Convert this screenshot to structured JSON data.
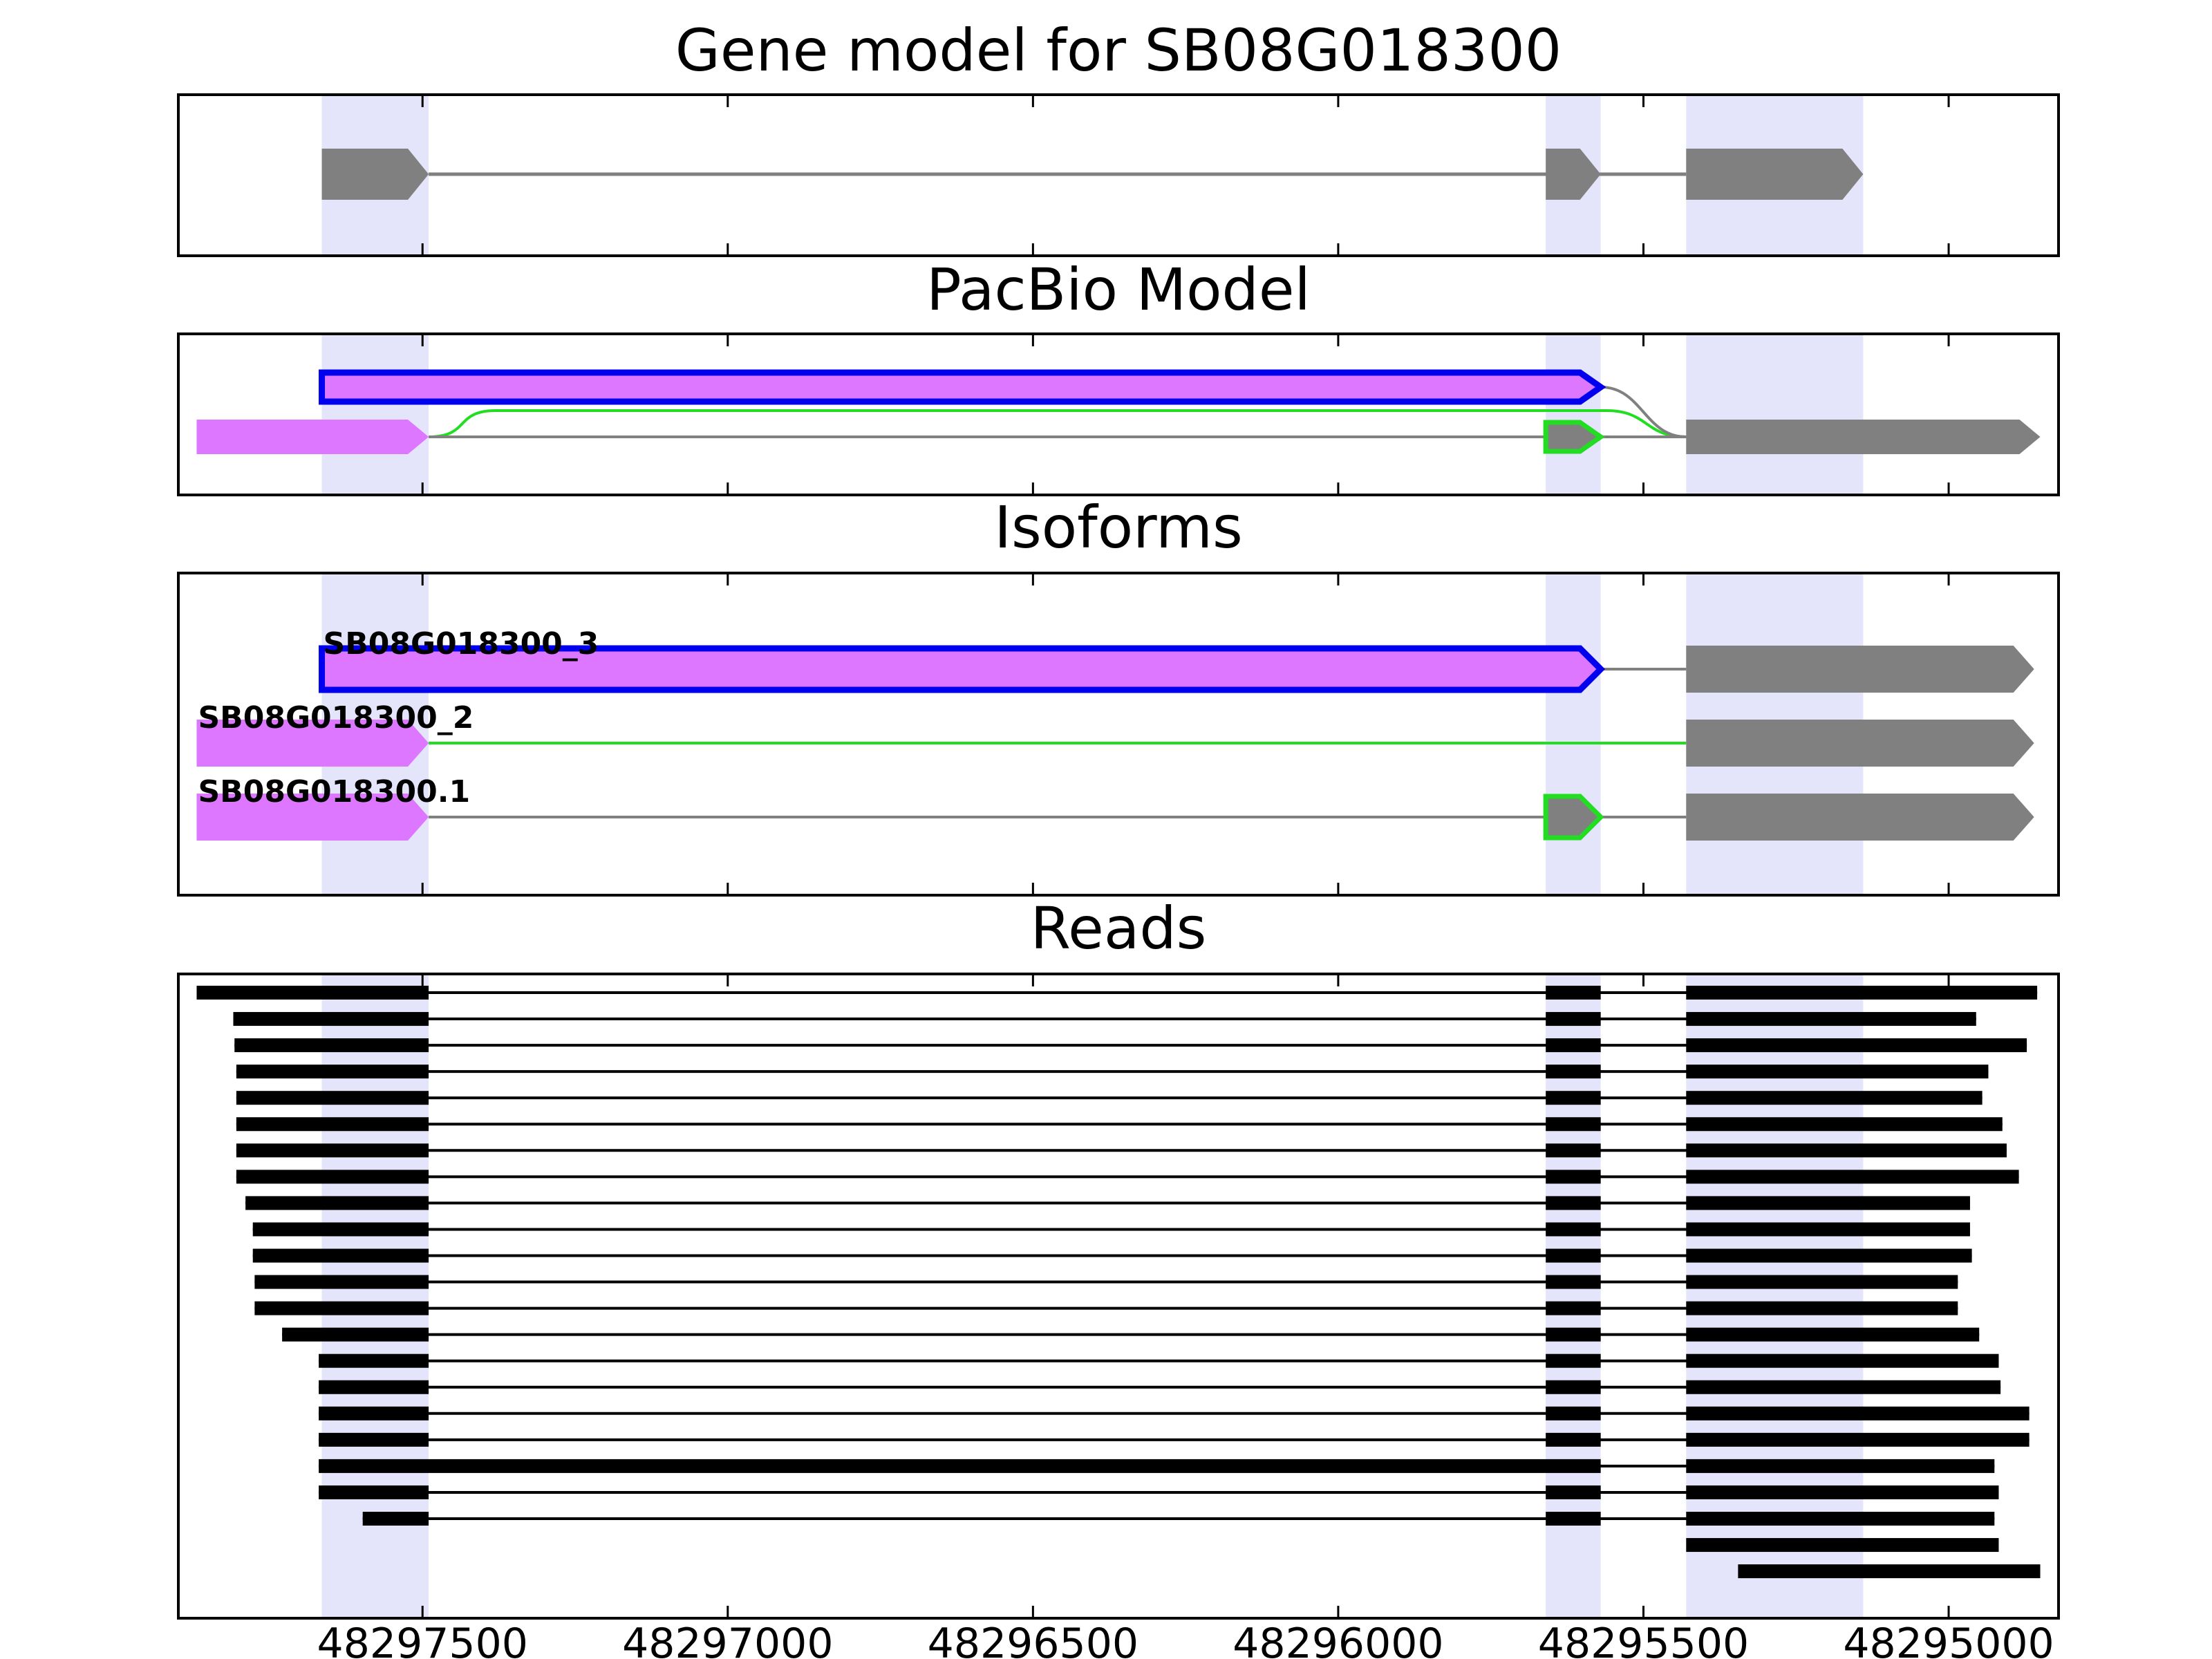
{
  "chart_data": [
    {
      "panel": "gene_model",
      "type": "gene-track",
      "title": "Gene model for SB08G018300",
      "xlim": [
        48297900,
        48294820
      ],
      "strand": "minus",
      "transcripts": [
        {
          "name": "",
          "color": "#808080",
          "exons": [
            [
              48297665,
              48297490
            ],
            [
              48295660,
              48295570
            ],
            [
              48295430,
              48295140
            ]
          ]
        }
      ]
    },
    {
      "panel": "pacbio_model",
      "type": "gene-track",
      "title": "PacBio Model",
      "xlim": [
        48297900,
        48294820
      ],
      "exons_shown": [
        {
          "start": 48297870,
          "end": 48297490,
          "fill": "#dd77ff",
          "edge": ""
        },
        {
          "start": 48297665,
          "end": 48295570,
          "fill": "#dd77ff",
          "edge": "#0000ee"
        },
        {
          "start": 48295660,
          "end": 48295570,
          "fill": "#808080",
          "edge": "#22dd22"
        },
        {
          "start": 48295430,
          "end": 48294850,
          "fill": "#808080",
          "edge": ""
        }
      ],
      "junctions": [
        {
          "from": 48297490,
          "to": 48295430,
          "color": "#22dd22"
        },
        {
          "from": 48297490,
          "to": 48295660,
          "color": "#808080"
        },
        {
          "from": 48295570,
          "to": 48295430,
          "color": "#808080"
        }
      ]
    },
    {
      "panel": "isoforms",
      "type": "gene-track",
      "title": "Isoforms",
      "xlim": [
        48297900,
        48294820
      ],
      "isoforms": [
        {
          "name": "SB08G018300_3",
          "line_color": "#808080",
          "exons": [
            {
              "start": 48297665,
              "end": 48295570,
              "fill": "#dd77ff",
              "edge": "#0000ee"
            },
            {
              "start": 48295430,
              "end": 48294860,
              "fill": "#808080",
              "edge": ""
            }
          ]
        },
        {
          "name": "SB08G018300_2",
          "line_color": "#22dd22",
          "exons": [
            {
              "start": 48297870,
              "end": 48297490,
              "fill": "#dd77ff",
              "edge": ""
            },
            {
              "start": 48295430,
              "end": 48294860,
              "fill": "#808080",
              "edge": ""
            }
          ]
        },
        {
          "name": "SB08G018300.1",
          "line_color": "#808080",
          "exons": [
            {
              "start": 48297870,
              "end": 48297490,
              "fill": "#dd77ff",
              "edge": ""
            },
            {
              "start": 48295660,
              "end": 48295570,
              "fill": "#808080",
              "edge": "#22dd22"
            },
            {
              "start": 48295430,
              "end": 48294860,
              "fill": "#808080",
              "edge": ""
            }
          ]
        }
      ]
    },
    {
      "panel": "reads",
      "type": "read-track",
      "title": "Reads",
      "xlim": [
        48297900,
        48294820
      ],
      "xticks": [
        48297500,
        48297000,
        48296500,
        48296000,
        48295500,
        48295000
      ],
      "xtick_labels": [
        "48297500",
        "48297000",
        "48296500",
        "48296000",
        "48295500",
        "48295000"
      ],
      "reads": [
        [
          [
            48297870,
            48297490
          ],
          [
            48295660,
            48295570
          ],
          [
            48295430,
            48294855
          ]
        ],
        [
          [
            48297810,
            48297490
          ],
          [
            48295660,
            48295570
          ],
          [
            48295430,
            48294955
          ]
        ],
        [
          [
            48297808,
            48297490
          ],
          [
            48295660,
            48295570
          ],
          [
            48295430,
            48294872
          ]
        ],
        [
          [
            48297805,
            48297490
          ],
          [
            48295660,
            48295570
          ],
          [
            48295430,
            48294935
          ]
        ],
        [
          [
            48297805,
            48297490
          ],
          [
            48295660,
            48295570
          ],
          [
            48295430,
            48294945
          ]
        ],
        [
          [
            48297805,
            48297490
          ],
          [
            48295660,
            48295570
          ],
          [
            48295430,
            48294912
          ]
        ],
        [
          [
            48297805,
            48297490
          ],
          [
            48295660,
            48295570
          ],
          [
            48295430,
            48294905
          ]
        ],
        [
          [
            48297805,
            48297490
          ],
          [
            48295660,
            48295570
          ],
          [
            48295430,
            48294885
          ]
        ],
        [
          [
            48297790,
            48297490
          ],
          [
            48295660,
            48295570
          ],
          [
            48295430,
            48294965
          ]
        ],
        [
          [
            48297778,
            48297490
          ],
          [
            48295660,
            48295570
          ],
          [
            48295430,
            48294965
          ]
        ],
        [
          [
            48297778,
            48297490
          ],
          [
            48295660,
            48295570
          ],
          [
            48295430,
            48294962
          ]
        ],
        [
          [
            48297775,
            48297490
          ],
          [
            48295660,
            48295570
          ],
          [
            48295430,
            48294985
          ]
        ],
        [
          [
            48297775,
            48297490
          ],
          [
            48295660,
            48295570
          ],
          [
            48295430,
            48294985
          ]
        ],
        [
          [
            48297730,
            48297490
          ],
          [
            48295660,
            48295570
          ],
          [
            48295430,
            48294950
          ]
        ],
        [
          [
            48297670,
            48297490
          ],
          [
            48295660,
            48295570
          ],
          [
            48295430,
            48294918
          ]
        ],
        [
          [
            48297670,
            48297490
          ],
          [
            48295660,
            48295570
          ],
          [
            48295430,
            48294915
          ]
        ],
        [
          [
            48297670,
            48297490
          ],
          [
            48295660,
            48295570
          ],
          [
            48295430,
            48294868
          ]
        ],
        [
          [
            48297670,
            48297490
          ],
          [
            48295660,
            48295570
          ],
          [
            48295430,
            48294868
          ]
        ],
        [
          [
            48297670,
            48295570
          ],
          [
            48295430,
            48294925
          ]
        ],
        [
          [
            48297670,
            48297490
          ],
          [
            48295660,
            48295570
          ],
          [
            48295430,
            48294918
          ]
        ],
        [
          [
            48297598,
            48297490
          ],
          [
            48295660,
            48295570
          ],
          [
            48295430,
            48294925
          ]
        ],
        [
          [
            48295430,
            48294918
          ]
        ],
        [
          [
            48295345,
            48294850
          ]
        ]
      ]
    }
  ],
  "highlight_regions": [
    [
      48297665,
      48297490
    ],
    [
      48295660,
      48295570
    ],
    [
      48295430,
      48295140
    ]
  ],
  "colors": {
    "highlight": "#e4e4fb",
    "pacbio_exon": "#dd77ff",
    "model_exon": "#808080",
    "novel_edge": "#0000ee",
    "alt_edge": "#22dd22",
    "read": "#000000"
  }
}
